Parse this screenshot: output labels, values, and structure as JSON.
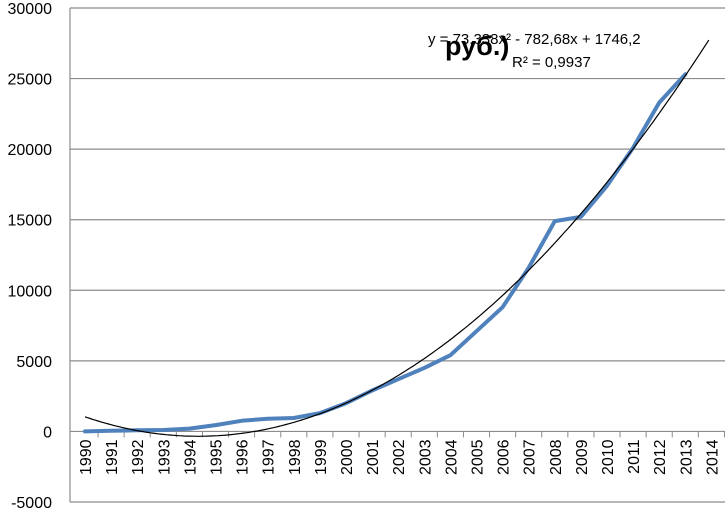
{
  "chart_data": {
    "type": "line",
    "title_fragment": "руб.)",
    "x": [
      "1990",
      "1991",
      "1992",
      "1993",
      "1994",
      "1995",
      "1996",
      "1997",
      "1998",
      "1999",
      "2000",
      "2001",
      "2002",
      "2003",
      "2004",
      "2005",
      "2006",
      "2007",
      "2008",
      "2009",
      "2010",
      "2011",
      "2012",
      "2013",
      "2014"
    ],
    "series": [
      {
        "values": [
          0,
          50,
          80,
          100,
          200,
          450,
          750,
          900,
          950,
          1300,
          2000,
          2900,
          3700,
          4500,
          5400,
          7100,
          8800,
          11600,
          14900,
          15200,
          17400,
          20100,
          23300,
          25300,
          null
        ],
        "color": "#4f81bd"
      }
    ],
    "trendline": {
      "type": "polynomial",
      "order": 2,
      "coefficients": [
        73.338,
        -782.68,
        1746.2
      ],
      "equation": "y = 73,338x² - 782,68x + 1746,2",
      "r_squared": "R² = 0,9937",
      "color": "#000000"
    },
    "yticks": [
      "-5000",
      "0",
      "5000",
      "10000",
      "15000",
      "20000",
      "25000",
      "30000"
    ],
    "ylim": [
      -5000,
      30000
    ],
    "grid": true
  }
}
